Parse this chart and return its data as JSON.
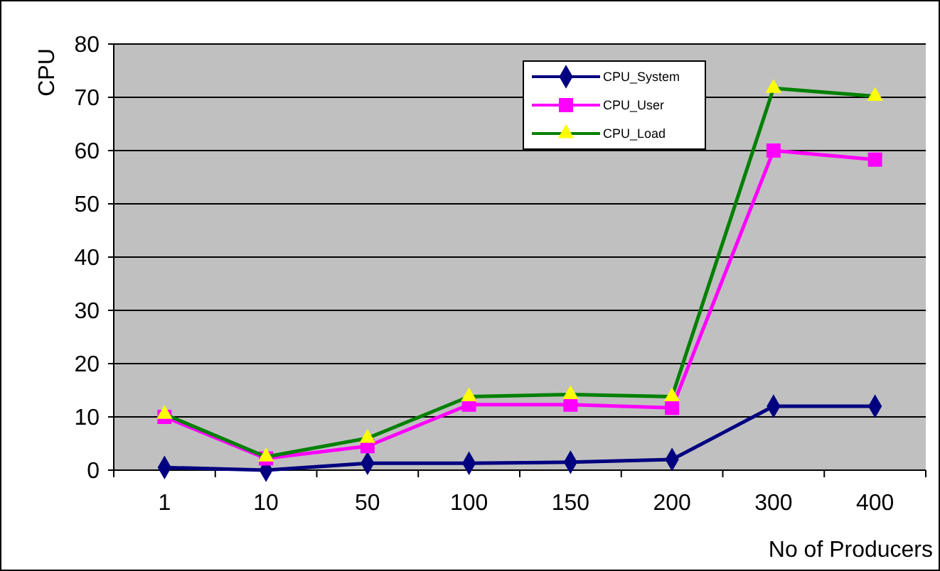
{
  "chart_data": {
    "type": "line",
    "xlabel": "No of Producers",
    "ylabel": "CPU",
    "categories": [
      "1",
      "10",
      "50",
      "100",
      "150",
      "200",
      "300",
      "400"
    ],
    "series": [
      {
        "name": "CPU_System",
        "color": "#000080",
        "marker": "diamond",
        "values": [
          0.5,
          0,
          1.3,
          1.3,
          1.5,
          2,
          12,
          12
        ]
      },
      {
        "name": "CPU_User",
        "color": "#ff00ff",
        "marker": "square",
        "values": [
          10,
          2.2,
          4.5,
          12.3,
          12.3,
          11.7,
          60,
          58.3
        ]
      },
      {
        "name": "CPU_Load",
        "color": "#008000",
        "marker": "triangle",
        "values": [
          10.5,
          2.5,
          6,
          13.8,
          14.2,
          13.8,
          71.7,
          70.2
        ]
      }
    ],
    "ylim": [
      0,
      80
    ],
    "yticks": [
      0,
      10,
      20,
      30,
      40,
      50,
      60,
      70,
      80
    ],
    "grid": "y",
    "legend": "top right"
  }
}
